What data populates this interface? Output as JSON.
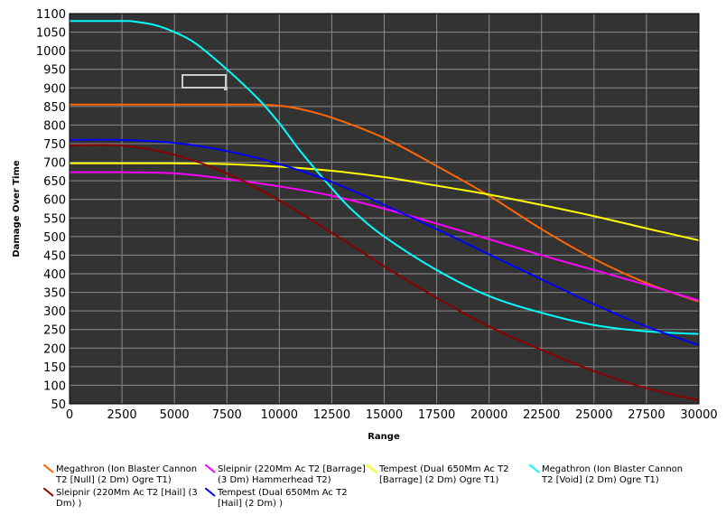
{
  "chart_data": {
    "type": "line",
    "xlabel": "Range",
    "ylabel": "Damage Over Time",
    "xlim": [
      0,
      30000
    ],
    "ylim": [
      50,
      1100
    ],
    "x_ticks": [
      0,
      2500,
      5000,
      7500,
      10000,
      12500,
      15000,
      17500,
      20000,
      22500,
      25000,
      27500,
      30000
    ],
    "y_ticks": [
      50,
      100,
      150,
      200,
      250,
      300,
      350,
      400,
      450,
      500,
      550,
      600,
      650,
      700,
      750,
      800,
      850,
      900,
      950,
      1000,
      1050,
      1100
    ],
    "grid": true,
    "background": "#333333",
    "grid_color": "#8c8c8c",
    "legend_position": "bottom",
    "series": [
      {
        "name": "Megathron (Ion Blaster Cannon T2 [Null] (2 Dm) Ogre T1)",
        "color": "#ff6600",
        "points": [
          [
            0,
            855
          ],
          [
            2500,
            855
          ],
          [
            5000,
            855
          ],
          [
            7500,
            855
          ],
          [
            9000,
            855
          ],
          [
            10000,
            852
          ],
          [
            11000,
            843
          ],
          [
            12500,
            820
          ],
          [
            15000,
            765
          ],
          [
            17500,
            690
          ],
          [
            20000,
            610
          ],
          [
            22500,
            520
          ],
          [
            25000,
            440
          ],
          [
            27500,
            375
          ],
          [
            30000,
            325
          ]
        ]
      },
      {
        "name": "Sleipnir (220Mm Ac T2 [Barrage] (3 Dm) Hammerhead T2)",
        "color": "#ff00ff",
        "points": [
          [
            0,
            673
          ],
          [
            2500,
            673
          ],
          [
            5000,
            670
          ],
          [
            7500,
            655
          ],
          [
            10000,
            635
          ],
          [
            12500,
            610
          ],
          [
            15000,
            575
          ],
          [
            17500,
            535
          ],
          [
            20000,
            493
          ],
          [
            22500,
            450
          ],
          [
            25000,
            410
          ],
          [
            27500,
            370
          ],
          [
            30000,
            328
          ]
        ]
      },
      {
        "name": "Tempest (Dual 650Mm Ac T2 [Barrage] (2 Dm) Ogre T1)",
        "color": "#ffff00",
        "points": [
          [
            0,
            697
          ],
          [
            2500,
            697
          ],
          [
            5000,
            697
          ],
          [
            7500,
            695
          ],
          [
            10000,
            688
          ],
          [
            12500,
            677
          ],
          [
            15000,
            660
          ],
          [
            17500,
            637
          ],
          [
            20000,
            613
          ],
          [
            22500,
            585
          ],
          [
            25000,
            555
          ],
          [
            27500,
            522
          ],
          [
            30000,
            490
          ]
        ]
      },
      {
        "name": "Megathron (Ion Blaster Cannon T2 [Void] (2 Dm) Ogre T1)",
        "color": "#00ffff",
        "points": [
          [
            0,
            1080
          ],
          [
            2500,
            1080
          ],
          [
            3000,
            1079
          ],
          [
            4000,
            1070
          ],
          [
            5000,
            1050
          ],
          [
            6000,
            1020
          ],
          [
            7500,
            950
          ],
          [
            9000,
            870
          ],
          [
            10000,
            805
          ],
          [
            11000,
            730
          ],
          [
            12500,
            630
          ],
          [
            13500,
            570
          ],
          [
            15000,
            500
          ],
          [
            17500,
            410
          ],
          [
            20000,
            340
          ],
          [
            22500,
            295
          ],
          [
            25000,
            262
          ],
          [
            27500,
            245
          ],
          [
            30000,
            238
          ]
        ]
      },
      {
        "name": "Sleipnir (220Mm Ac T2 [Hail] (3 Dm) )",
        "color": "#8b0000",
        "points": [
          [
            0,
            745
          ],
          [
            2500,
            745
          ],
          [
            5000,
            720
          ],
          [
            7500,
            670
          ],
          [
            10000,
            597
          ],
          [
            12500,
            510
          ],
          [
            15000,
            420
          ],
          [
            17500,
            335
          ],
          [
            20000,
            258
          ],
          [
            22500,
            195
          ],
          [
            25000,
            138
          ],
          [
            27500,
            92
          ],
          [
            30000,
            60
          ]
        ]
      },
      {
        "name": "Tempest (Dual 650Mm Ac T2 [Hail] (2 Dm) )",
        "color": "#0000ff",
        "points": [
          [
            0,
            760
          ],
          [
            2500,
            760
          ],
          [
            5000,
            752
          ],
          [
            7500,
            730
          ],
          [
            10000,
            695
          ],
          [
            12500,
            647
          ],
          [
            15000,
            585
          ],
          [
            17500,
            520
          ],
          [
            20000,
            452
          ],
          [
            22500,
            385
          ],
          [
            25000,
            318
          ],
          [
            27500,
            258
          ],
          [
            30000,
            208
          ]
        ]
      }
    ]
  }
}
